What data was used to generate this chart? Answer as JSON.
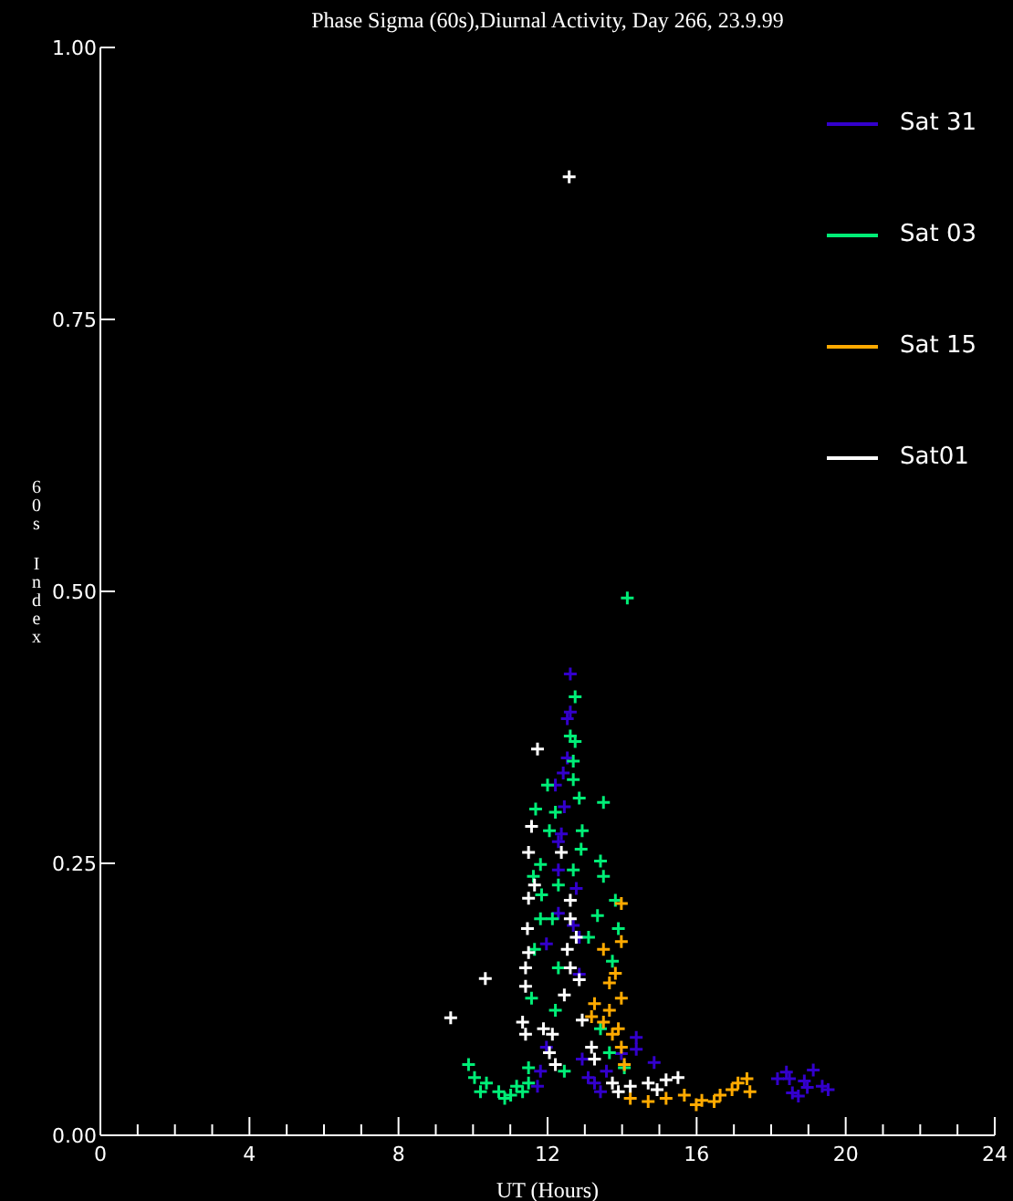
{
  "chart_data": {
    "type": "scatter",
    "title": "Phase Sigma (60s),Diurnal Activity, Day 266, 23.9.99",
    "xlabel": "UT (Hours)",
    "ylabel": "60s Index",
    "xlim": [
      0,
      24
    ],
    "xticks": [
      0,
      {
        "value": 1,
        "label": null
      },
      {
        "value": 2,
        "label": null
      },
      {
        "value": 3,
        "label": null
      },
      4,
      {
        "value": 5,
        "label": null
      },
      {
        "value": 6,
        "label": null
      },
      {
        "value": 7,
        "label": null
      },
      8,
      {
        "value": 9,
        "label": null
      },
      {
        "value": 10,
        "label": null
      },
      {
        "value": 11,
        "label": null
      },
      12,
      {
        "value": 13,
        "label": null
      },
      {
        "value": 14,
        "label": null
      },
      {
        "value": 15,
        "label": null
      },
      16,
      {
        "value": 17,
        "label": null
      },
      {
        "value": 18,
        "label": null
      },
      {
        "value": 19,
        "label": null
      },
      20,
      {
        "value": 21,
        "label": null
      },
      {
        "value": 22,
        "label": null
      },
      {
        "value": 23,
        "label": null
      },
      24
    ],
    "ylim": [
      0,
      1
    ],
    "yticks": [
      {
        "value": 0,
        "label": "0.00"
      },
      {
        "value": 0.25,
        "label": "0.25"
      },
      {
        "value": 0.5,
        "label": "0.50"
      },
      {
        "value": 0.75,
        "label": "0.75"
      },
      {
        "value": 1,
        "label": "1.00"
      }
    ],
    "marker": "cross",
    "legend": "top right",
    "grid": false,
    "series": [
      {
        "name": "Sat 31",
        "color": "#3300cc",
        "x": [
          12.61,
          12.61,
          12.53,
          12.53,
          12.42,
          12.21,
          12.45,
          12.37,
          12.29,
          12.29,
          12.77,
          12.29,
          12.69,
          11.97,
          12.85,
          12.85,
          11.97,
          11.81,
          11.73,
          12.93,
          13.09,
          13.26,
          13.58,
          13.98,
          14.38,
          14.38,
          14.86,
          13.42,
          18.17,
          18.41,
          18.57,
          18.73,
          18.89,
          19.13,
          19.37,
          19.53,
          18.49,
          18.97
        ],
        "values": [
          0.424,
          0.389,
          0.383,
          0.347,
          0.333,
          0.322,
          0.302,
          0.277,
          0.27,
          0.244,
          0.227,
          0.204,
          0.193,
          0.176,
          0.182,
          0.148,
          0.081,
          0.059,
          0.045,
          0.07,
          0.053,
          0.048,
          0.059,
          0.075,
          0.09,
          0.079,
          0.067,
          0.04,
          0.052,
          0.058,
          0.039,
          0.036,
          0.05,
          0.06,
          0.045,
          0.042,
          0.052,
          0.044
        ]
      },
      {
        "name": "Sat 03",
        "color": "#00ee77",
        "x": [
          14.14,
          12.74,
          12.61,
          12.74,
          12.69,
          12.69,
          12.0,
          13.5,
          12.85,
          11.68,
          12.21,
          12.05,
          12.93,
          12.9,
          13.42,
          13.5,
          11.62,
          11.81,
          12.69,
          12.29,
          11.84,
          13.82,
          13.34,
          12.13,
          11.81,
          13.1,
          13.9,
          11.65,
          12.29,
          13.74,
          11.57,
          12.21,
          13.42,
          13.66,
          14.06,
          12.45,
          9.88,
          10.04,
          10.36,
          10.69,
          11.01,
          11.33,
          11.49,
          11.49,
          10.2,
          10.85,
          11.17
        ],
        "values": [
          0.494,
          0.403,
          0.367,
          0.362,
          0.344,
          0.327,
          0.322,
          0.306,
          0.31,
          0.3,
          0.297,
          0.28,
          0.28,
          0.263,
          0.252,
          0.238,
          0.238,
          0.249,
          0.244,
          0.23,
          0.221,
          0.216,
          0.202,
          0.199,
          0.199,
          0.182,
          0.19,
          0.171,
          0.154,
          0.16,
          0.126,
          0.115,
          0.098,
          0.076,
          0.062,
          0.059,
          0.065,
          0.053,
          0.048,
          0.04,
          0.037,
          0.04,
          0.048,
          0.062,
          0.04,
          0.034,
          0.045
        ]
      },
      {
        "name": "Sat 15",
        "color": "#ffaa00",
        "x": [
          13.98,
          13.98,
          13.5,
          13.82,
          13.66,
          13.98,
          13.26,
          13.66,
          13.5,
          13.74,
          13.98,
          14.06,
          13.9,
          13.18,
          14.22,
          14.7,
          15.18,
          15.67,
          15.99,
          16.47,
          16.95,
          16.14,
          16.63,
          17.11,
          17.35,
          17.43
        ],
        "values": [
          0.213,
          0.178,
          0.171,
          0.149,
          0.14,
          0.126,
          0.121,
          0.115,
          0.104,
          0.093,
          0.081,
          0.065,
          0.098,
          0.109,
          0.034,
          0.031,
          0.034,
          0.037,
          0.028,
          0.031,
          0.042,
          0.032,
          0.037,
          0.048,
          0.052,
          0.04
        ]
      },
      {
        "name": "Sat01",
        "color": "#ffffff",
        "x": [
          12.58,
          11.73,
          11.57,
          11.49,
          11.65,
          11.49,
          11.46,
          11.49,
          11.41,
          10.33,
          9.4,
          11.41,
          11.33,
          11.41,
          11.89,
          12.13,
          12.05,
          12.21,
          12.61,
          12.61,
          12.77,
          12.53,
          12.61,
          12.45,
          12.85,
          12.93,
          13.18,
          13.26,
          12.37,
          13.74,
          14.22,
          14.7,
          15.18,
          15.5,
          13.9,
          14.94
        ],
        "values": [
          0.881,
          0.355,
          0.284,
          0.26,
          0.23,
          0.218,
          0.19,
          0.168,
          0.154,
          0.144,
          0.108,
          0.137,
          0.104,
          0.093,
          0.098,
          0.093,
          0.076,
          0.065,
          0.216,
          0.199,
          0.182,
          0.171,
          0.154,
          0.129,
          0.143,
          0.106,
          0.081,
          0.07,
          0.26,
          0.048,
          0.045,
          0.048,
          0.051,
          0.053,
          0.04,
          0.042
        ]
      }
    ]
  }
}
